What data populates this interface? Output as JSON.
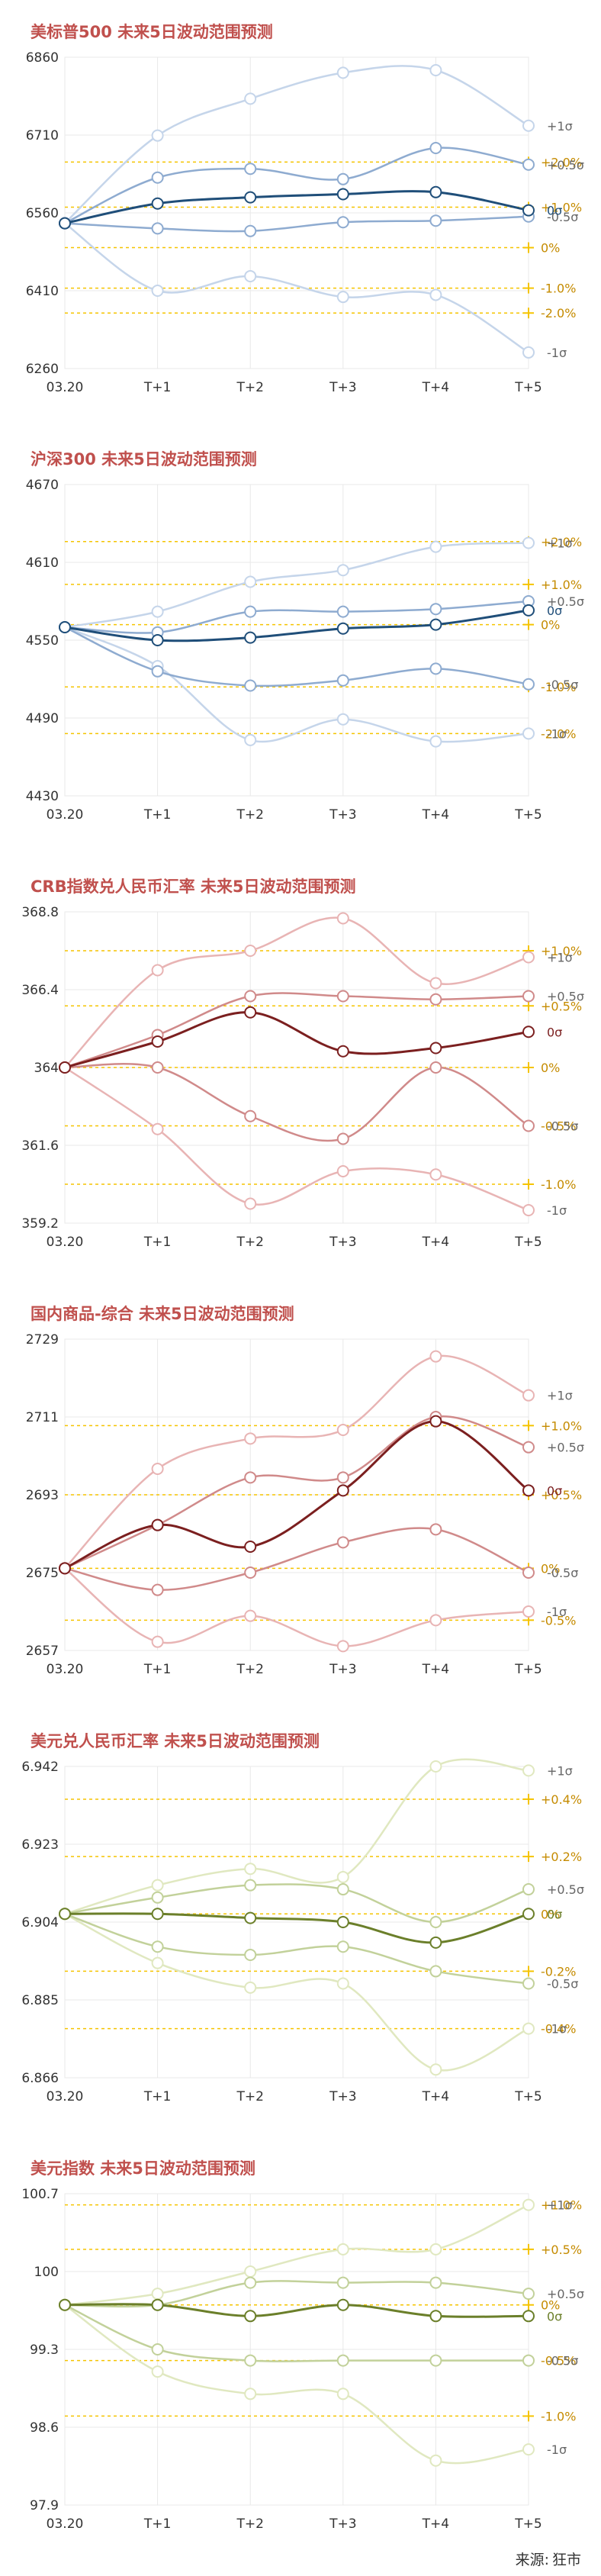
{
  "source": {
    "label": "来源:",
    "name": "狂市"
  },
  "chart_data": [
    {
      "type": "line",
      "title": "美标普500 未来5日波动范围预测",
      "x": [
        "03.20",
        "T+1",
        "T+2",
        "T+3",
        "T+4",
        "T+5"
      ],
      "y_ticks": [
        6860,
        6710,
        6560,
        6410,
        6260
      ],
      "ylim": [
        6260,
        6860
      ],
      "series": [
        {
          "name": "+1σ",
          "values": [
            6540,
            6709,
            6780,
            6830,
            6835,
            6728
          ],
          "tone": "light"
        },
        {
          "name": "+0.5σ",
          "values": [
            6540,
            6628,
            6645,
            6625,
            6685,
            6653
          ],
          "tone": "mid"
        },
        {
          "name": "0σ",
          "values": [
            6540,
            6578,
            6590,
            6596,
            6600,
            6565
          ],
          "tone": "dark"
        },
        {
          "name": "-0.5σ",
          "values": [
            6540,
            6530,
            6525,
            6542,
            6545,
            6553
          ],
          "tone": "mid"
        },
        {
          "name": "-1σ",
          "values": [
            6540,
            6410,
            6438,
            6398,
            6402,
            6291
          ],
          "tone": "light"
        }
      ],
      "pct_lines": [
        {
          "label": "+2.0%",
          "value": 6658
        },
        {
          "label": "+1.0%",
          "value": 6571
        },
        {
          "label": "0%",
          "value": 6493
        },
        {
          "label": "-1.0%",
          "value": 6415
        },
        {
          "label": "-2.0%",
          "value": 6367
        }
      ],
      "colors": {
        "light": "#c5d5ea",
        "mid": "#8eabd0",
        "dark": "#1f4e79",
        "pct": "#f5c400",
        "pct_text": "#c58b00"
      },
      "grid": true
    },
    {
      "type": "line",
      "title": "沪深300 未来5日波动范围预测",
      "x": [
        "03.20",
        "T+1",
        "T+2",
        "T+3",
        "T+4",
        "T+5"
      ],
      "y_ticks": [
        4670,
        4610,
        4550,
        4490,
        4430
      ],
      "ylim": [
        4430,
        4670
      ],
      "series": [
        {
          "name": "+1σ",
          "values": [
            4560,
            4572,
            4595,
            4604,
            4622,
            4625
          ],
          "tone": "light"
        },
        {
          "name": "+0.5σ",
          "values": [
            4560,
            4556,
            4572,
            4572,
            4574,
            4580
          ],
          "tone": "mid"
        },
        {
          "name": "0σ",
          "values": [
            4560,
            4550,
            4552,
            4559,
            4562,
            4573
          ],
          "tone": "dark"
        },
        {
          "name": "-0.5σ",
          "values": [
            4560,
            4526,
            4515,
            4519,
            4528,
            4516
          ],
          "tone": "mid"
        },
        {
          "name": "-1σ",
          "values": [
            4560,
            4530,
            4473,
            4489,
            4472,
            4478
          ],
          "tone": "light"
        }
      ],
      "pct_lines": [
        {
          "label": "+2.0%",
          "value": 4626
        },
        {
          "label": "+1.0%",
          "value": 4593
        },
        {
          "label": "0%",
          "value": 4562
        },
        {
          "label": "-1.0%",
          "value": 4514
        },
        {
          "label": "-2.0%",
          "value": 4478
        }
      ],
      "colors": {
        "light": "#c5d5ea",
        "mid": "#8eabd0",
        "dark": "#1f4e79",
        "pct": "#f5c400",
        "pct_text": "#c58b00"
      },
      "grid": true
    },
    {
      "type": "line",
      "title": "CRB指数兑人民币汇率 未来5日波动范围预测",
      "x": [
        "03.20",
        "T+1",
        "T+2",
        "T+3",
        "T+4",
        "T+5"
      ],
      "y_ticks": [
        368.8,
        366.4,
        364,
        361.6,
        359.2
      ],
      "ylim": [
        359.2,
        368.8
      ],
      "series": [
        {
          "name": "+1σ",
          "values": [
            364,
            367.0,
            367.6,
            368.6,
            366.6,
            367.4
          ],
          "tone": "light"
        },
        {
          "name": "+0.5σ",
          "values": [
            364,
            365.0,
            366.2,
            366.2,
            366.1,
            366.2
          ],
          "tone": "mid"
        },
        {
          "name": "0σ",
          "values": [
            364,
            364.8,
            365.7,
            364.5,
            364.6,
            365.1
          ],
          "tone": "dark"
        },
        {
          "name": "-0.5σ",
          "values": [
            364,
            364.0,
            362.5,
            361.8,
            364.0,
            362.2
          ],
          "tone": "mid"
        },
        {
          "name": "-1σ",
          "values": [
            364,
            362.1,
            359.8,
            360.8,
            360.7,
            359.6
          ],
          "tone": "light"
        }
      ],
      "pct_lines": [
        {
          "label": "+1.0%",
          "value": 367.6
        },
        {
          "label": "+0.5%",
          "value": 365.9
        },
        {
          "label": "0%",
          "value": 364.0
        },
        {
          "label": "-0.5%",
          "value": 362.2
        },
        {
          "label": "-1.0%",
          "value": 360.4
        }
      ],
      "colors": {
        "light": "#e8b4b4",
        "mid": "#d08a8a",
        "dark": "#7b1f1f",
        "pct": "#f5c400",
        "pct_text": "#c58b00"
      },
      "grid": true
    },
    {
      "type": "line",
      "title": "国内商品-综合 未来5日波动范围预测",
      "x": [
        "03.20",
        "T+1",
        "T+2",
        "T+3",
        "T+4",
        "T+5"
      ],
      "y_ticks": [
        2729,
        2711,
        2693,
        2675,
        2657
      ],
      "ylim": [
        2657,
        2729
      ],
      "series": [
        {
          "name": "+1σ",
          "values": [
            2676,
            2699,
            2706,
            2708,
            2725,
            2716
          ],
          "tone": "light"
        },
        {
          "name": "+0.5σ",
          "values": [
            2676,
            2686,
            2697,
            2697,
            2711,
            2704
          ],
          "tone": "mid"
        },
        {
          "name": "0σ",
          "values": [
            2676,
            2686,
            2681,
            2694,
            2710,
            2694
          ],
          "tone": "dark"
        },
        {
          "name": "-0.5σ",
          "values": [
            2676,
            2671,
            2675,
            2682,
            2685,
            2675
          ],
          "tone": "mid"
        },
        {
          "name": "-1σ",
          "values": [
            2676,
            2659,
            2665,
            2658,
            2664,
            2666
          ],
          "tone": "light"
        }
      ],
      "pct_lines": [
        {
          "label": "+1.0%",
          "value": 2709
        },
        {
          "label": "+0.5%",
          "value": 2693
        },
        {
          "label": "0%",
          "value": 2676
        },
        {
          "label": "-0.5%",
          "value": 2664
        }
      ],
      "colors": {
        "light": "#e8b4b4",
        "mid": "#d08a8a",
        "dark": "#7b1f1f",
        "pct": "#f5c400",
        "pct_text": "#c58b00"
      },
      "grid": true
    },
    {
      "type": "line",
      "title": "美元兑人民币汇率 未来5日波动范围预测",
      "x": [
        "03.20",
        "T+1",
        "T+2",
        "T+3",
        "T+4",
        "T+5"
      ],
      "y_ticks": [
        6.942,
        6.923,
        6.904,
        6.885,
        6.866
      ],
      "ylim": [
        6.866,
        6.942
      ],
      "series": [
        {
          "name": "+1σ",
          "values": [
            6.906,
            6.913,
            6.917,
            6.915,
            6.942,
            6.941
          ],
          "tone": "light"
        },
        {
          "name": "+0.5σ",
          "values": [
            6.906,
            6.91,
            6.913,
            6.912,
            6.904,
            6.912
          ],
          "tone": "mid"
        },
        {
          "name": "0σ",
          "values": [
            6.906,
            6.906,
            6.905,
            6.904,
            6.899,
            6.906
          ],
          "tone": "dark"
        },
        {
          "name": "-0.5σ",
          "values": [
            6.906,
            6.898,
            6.896,
            6.898,
            6.892,
            6.889
          ],
          "tone": "mid"
        },
        {
          "name": "-1σ",
          "values": [
            6.906,
            6.894,
            6.888,
            6.889,
            6.868,
            6.878
          ],
          "tone": "light"
        }
      ],
      "pct_lines": [
        {
          "label": "+0.4%",
          "value": 6.934
        },
        {
          "label": "+0.2%",
          "value": 6.92
        },
        {
          "label": "0%",
          "value": 6.906
        },
        {
          "label": "-0.2%",
          "value": 6.892
        },
        {
          "label": "-0.4%",
          "value": 6.878
        }
      ],
      "colors": {
        "light": "#e0e8c0",
        "mid": "#c2d19a",
        "dark": "#6b7f2a",
        "pct": "#f5c400",
        "pct_text": "#c58b00"
      },
      "grid": true
    },
    {
      "type": "line",
      "title": "美元指数 未来5日波动范围预测",
      "x": [
        "03.20",
        "T+1",
        "T+2",
        "T+3",
        "T+4",
        "T+5"
      ],
      "y_ticks": [
        100.7,
        100,
        99.3,
        98.6,
        97.9
      ],
      "ylim": [
        97.9,
        100.7
      ],
      "series": [
        {
          "name": "+1σ",
          "values": [
            99.7,
            99.8,
            100.0,
            100.2,
            100.2,
            100.6
          ],
          "tone": "light"
        },
        {
          "name": "+0.5σ",
          "values": [
            99.7,
            99.7,
            99.9,
            99.9,
            99.9,
            99.8
          ],
          "tone": "mid"
        },
        {
          "name": "0σ",
          "values": [
            99.7,
            99.7,
            99.6,
            99.7,
            99.6,
            99.6
          ],
          "tone": "dark"
        },
        {
          "name": "-0.5σ",
          "values": [
            99.7,
            99.3,
            99.2,
            99.2,
            99.2,
            99.2
          ],
          "tone": "mid"
        },
        {
          "name": "-1σ",
          "values": [
            99.7,
            99.1,
            98.9,
            98.9,
            98.3,
            98.4
          ],
          "tone": "light"
        }
      ],
      "pct_lines": [
        {
          "label": "+1.0%",
          "value": 100.6
        },
        {
          "label": "+0.5%",
          "value": 100.2
        },
        {
          "label": "0%",
          "value": 99.7
        },
        {
          "label": "-0.5%",
          "value": 99.2
        },
        {
          "label": "-1.0%",
          "value": 98.7
        }
      ],
      "colors": {
        "light": "#e0e8c0",
        "mid": "#c2d19a",
        "dark": "#6b7f2a",
        "pct": "#f5c400",
        "pct_text": "#c58b00"
      },
      "grid": true
    }
  ]
}
